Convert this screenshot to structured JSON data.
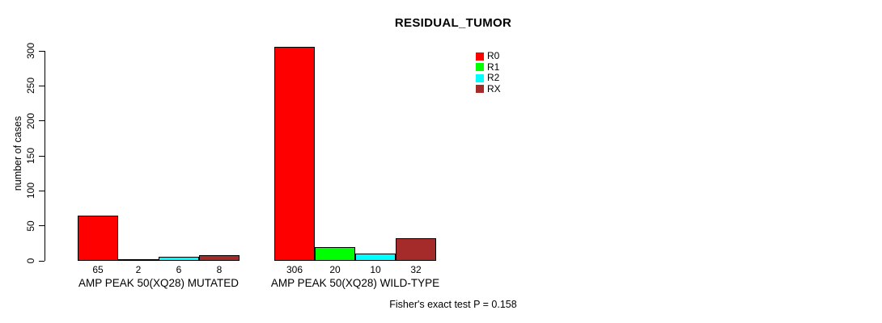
{
  "chart_data": {
    "type": "bar",
    "title": "RESIDUAL_TUMOR",
    "ylabel": "number of cases",
    "xlabel": "",
    "ylim": [
      0,
      300
    ],
    "yticks": [
      0,
      50,
      100,
      150,
      200,
      250,
      300
    ],
    "grid": false,
    "legend_position": "top-right",
    "categories": [
      "AMP PEAK 50(XQ28) MUTATED",
      "AMP PEAK 50(XQ28) WILD-TYPE"
    ],
    "series": [
      {
        "name": "R0",
        "color": "#ff0000",
        "values": [
          65,
          306
        ]
      },
      {
        "name": "R1",
        "color": "#00ff00",
        "values": [
          2,
          20
        ]
      },
      {
        "name": "R2",
        "color": "#00ffff",
        "values": [
          6,
          10
        ]
      },
      {
        "name": "RX",
        "color": "#a52a2a",
        "values": [
          8,
          32
        ]
      }
    ],
    "bar_value_labels": [
      [
        65,
        2,
        6,
        8
      ],
      [
        306,
        20,
        10,
        32
      ]
    ],
    "annotation": "Fisher's exact test P = 0.158"
  },
  "colors": {
    "axis": "#000000",
    "background": "#ffffff",
    "text": "#000000"
  }
}
